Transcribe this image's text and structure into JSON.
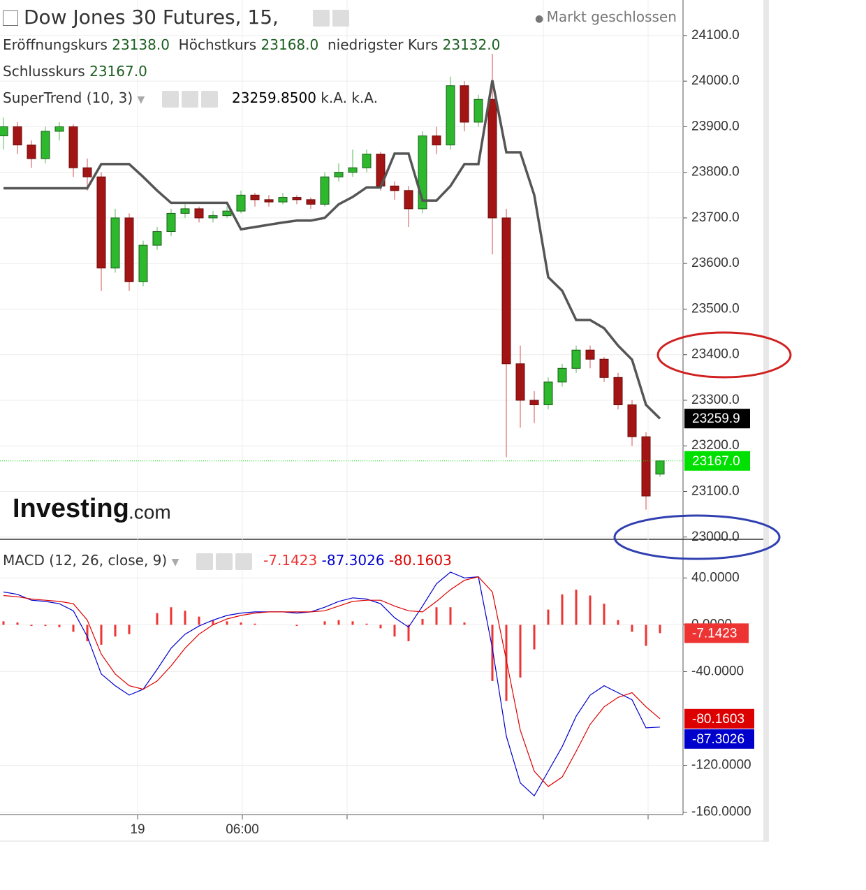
{
  "chart_data": {
    "type": "candlestick",
    "title": "Dow Jones 30 Futures, 15,",
    "status": "Markt geschlossen",
    "ohlc_names": [
      "Eröffnungskurs",
      "Höchstkurs",
      "niedrigster Kurs",
      "Schlusskurs"
    ],
    "ohlc_labels": [
      "23138.0",
      "23168.0",
      "23132.0",
      "23167.0"
    ],
    "watermark": [
      "Investing",
      ".com"
    ],
    "xlim": [
      -0.25,
      48.65
    ],
    "xticks": [
      {
        "value": 9.6,
        "label": "19"
      },
      {
        "value": 17.1,
        "label": "06:00"
      },
      {
        "value": 24.6,
        "label": null
      },
      {
        "value": 38.65,
        "label": null
      },
      {
        "value": 46.15,
        "label": null
      }
    ],
    "ylim": [
      22995,
      24178
    ],
    "yticks": [
      {
        "value": 24100,
        "label": "24100.0"
      },
      {
        "value": 24000,
        "label": "24000.0"
      },
      {
        "value": 23900,
        "label": "23900.0"
      },
      {
        "value": 23800,
        "label": "23800.0"
      },
      {
        "value": 23700,
        "label": "23700.0"
      },
      {
        "value": 23600,
        "label": "23600.0"
      },
      {
        "value": 23500,
        "label": "23500.0"
      },
      {
        "value": 23400,
        "label": "23400.0"
      },
      {
        "value": 23300,
        "label": "23300.0"
      },
      {
        "value": 23200,
        "label": "23200.0"
      },
      {
        "value": 23100,
        "label": "23100.0"
      },
      {
        "value": 23000,
        "label": "23000.0"
      }
    ],
    "grid": true,
    "up_color": "#2db82d",
    "down_color": "#a31515",
    "last_price_color": "#00e000",
    "open": [
      23880,
      23900,
      23860,
      23830,
      23890,
      23900,
      23810,
      23790,
      23590,
      23700,
      23560,
      23640,
      23670,
      23710,
      23720,
      23700,
      23705,
      23715,
      23750,
      23740,
      23735,
      23745,
      23740,
      23730,
      23790,
      23800,
      23810,
      23840,
      23770,
      23760,
      23720,
      23880,
      23860,
      23990,
      23910,
      23960,
      23700,
      23380,
      23300,
      23290,
      23340,
      23370,
      23410,
      23390,
      23350,
      23290,
      23220,
      23138
    ],
    "high": [
      23920,
      23910,
      23870,
      23900,
      23910,
      23905,
      23830,
      23800,
      23720,
      23710,
      23650,
      23680,
      23720,
      23730,
      23725,
      23715,
      23725,
      23760,
      23755,
      23750,
      23755,
      23750,
      23745,
      23800,
      23820,
      23850,
      23850,
      23845,
      23780,
      23770,
      23890,
      23900,
      24010,
      24000,
      23970,
      24060,
      23720,
      23420,
      23320,
      23350,
      23380,
      23420,
      23420,
      23395,
      23360,
      23300,
      23230,
      23168
    ],
    "low": [
      23850,
      23840,
      23810,
      23820,
      23870,
      23790,
      23760,
      23540,
      23580,
      23540,
      23550,
      23630,
      23660,
      23700,
      23690,
      23690,
      23700,
      23710,
      23725,
      23725,
      23730,
      23730,
      23720,
      23725,
      23780,
      23790,
      23800,
      23760,
      23740,
      23680,
      23710,
      23840,
      23850,
      23890,
      23900,
      23620,
      23175,
      23240,
      23250,
      23280,
      23330,
      23360,
      23370,
      23340,
      23280,
      23200,
      23060,
      23132
    ],
    "close": [
      23900,
      23860,
      23830,
      23890,
      23900,
      23810,
      23790,
      23590,
      23700,
      23560,
      23640,
      23670,
      23710,
      23720,
      23700,
      23705,
      23715,
      23750,
      23740,
      23735,
      23745,
      23740,
      23730,
      23790,
      23800,
      23810,
      23840,
      23770,
      23760,
      23720,
      23880,
      23860,
      23990,
      23910,
      23960,
      23700,
      23380,
      23300,
      23290,
      23340,
      23370,
      23410,
      23390,
      23350,
      23290,
      23220,
      23090,
      23167
    ],
    "supertrend": {
      "name": "SuperTrend (10, 3)",
      "color": "#555555",
      "value_label": "23259.8500",
      "axis_label": "23259.9",
      "extra_labels": [
        "k.A.",
        "k.A."
      ],
      "values": [
        23765,
        23765,
        23765,
        23765,
        23765,
        23765,
        23765,
        23818,
        23818,
        23818,
        23790,
        23760,
        23733,
        23733,
        23733,
        23733,
        23733,
        23675,
        23680,
        23685,
        23690,
        23694,
        23694,
        23700,
        23730,
        23746,
        23767,
        23767,
        23841,
        23841,
        23738,
        23738,
        23770,
        23818,
        23818,
        24002,
        23844,
        23844,
        23750,
        23570,
        23540,
        23476,
        23476,
        23458,
        23420,
        23389,
        23290,
        23259.85
      ]
    },
    "macd_panel": {
      "name": "MACD (12, 26, close, 9)",
      "ylim": [
        -162,
        73
      ],
      "yticks": [
        {
          "value": 40,
          "label": "40.0000"
        },
        {
          "value": 0,
          "label": "0.0000"
        },
        {
          "value": -40,
          "label": "-40.0000"
        },
        {
          "value": -120,
          "label": "-120.0000"
        },
        {
          "value": -160,
          "label": "-160.0000"
        }
      ],
      "histogram": {
        "color": "#ee3333",
        "values": [
          3,
          2,
          -1,
          -1,
          -2,
          -6,
          -14,
          -17,
          -10,
          -8,
          0,
          10,
          15,
          12,
          7,
          4,
          3,
          2,
          1,
          0,
          0,
          -1,
          0,
          3,
          4,
          3,
          1,
          -3,
          -10,
          -14,
          5,
          15,
          15,
          2,
          0,
          -48,
          -65,
          -45,
          -21,
          13,
          26,
          30,
          25,
          18,
          4,
          -6,
          -18,
          -7.1423
        ]
      },
      "macd": {
        "color": "#0000cc",
        "values": [
          28,
          26,
          21,
          20,
          18,
          12,
          -10,
          -42,
          -52,
          -60,
          -55,
          -38,
          -20,
          -8,
          -1,
          4,
          8,
          10,
          11,
          11,
          11,
          10,
          11,
          15,
          20,
          23,
          22,
          18,
          6,
          -2,
          16,
          35,
          45,
          40,
          41,
          -20,
          -95,
          -135,
          -146,
          -125,
          -104,
          -78,
          -60,
          -52,
          -58,
          -64,
          -88,
          -87.3026
        ]
      },
      "signal": {
        "color": "#dd0000",
        "values": [
          25,
          24,
          22,
          21,
          20,
          18,
          4,
          -25,
          -42,
          -52,
          -55,
          -48,
          -35,
          -20,
          -8,
          0,
          5,
          8,
          10,
          11,
          11,
          11,
          11,
          12,
          16,
          20,
          21,
          21,
          16,
          12,
          11,
          20,
          30,
          38,
          41,
          28,
          -30,
          -90,
          -125,
          -138,
          -130,
          -108,
          -85,
          -70,
          -62,
          -58,
          -70,
          -80.1603
        ]
      }
    }
  }
}
